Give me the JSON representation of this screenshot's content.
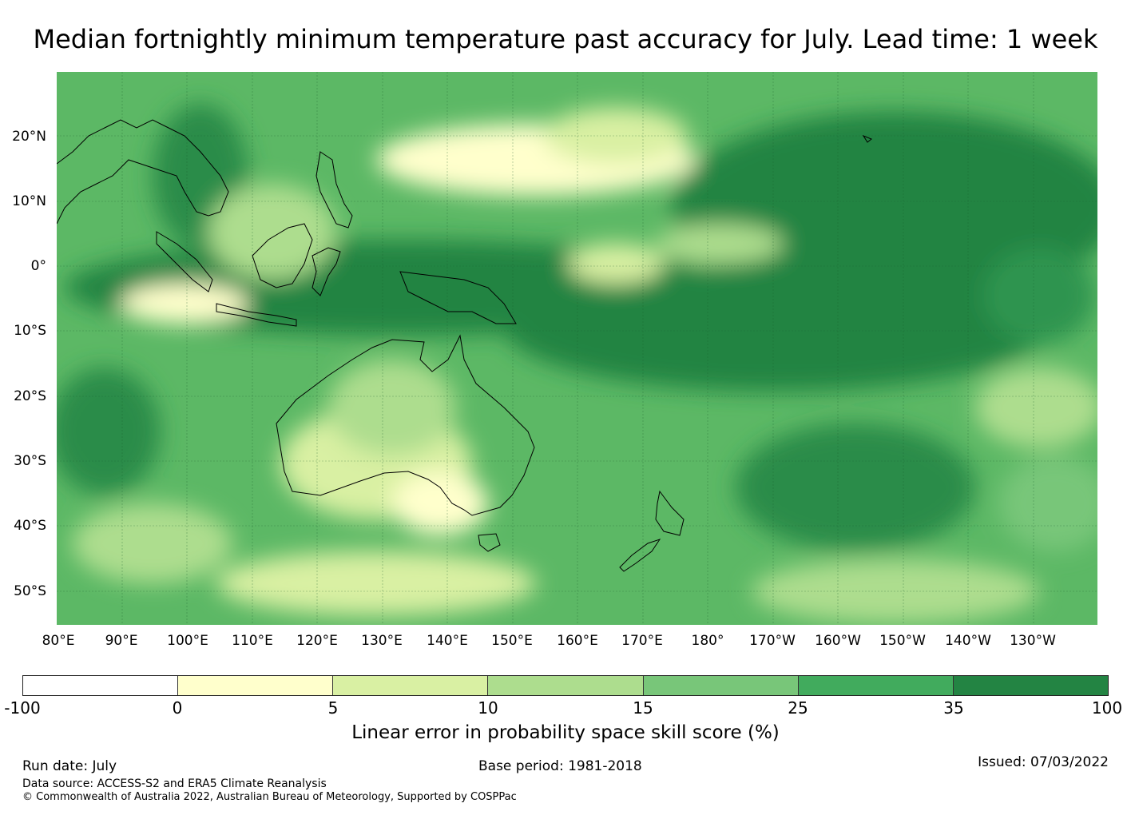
{
  "title": "Median fortnightly minimum temperature past accuracy for July. Lead time: 1 week",
  "map": {
    "lon_labels": [
      "80°E",
      "90°E",
      "100°E",
      "110°E",
      "120°E",
      "130°E",
      "140°E",
      "150°E",
      "160°E",
      "170°E",
      "180°",
      "170°W",
      "160°W",
      "150°W",
      "140°W",
      "130°W"
    ],
    "lat_labels": [
      "20°N",
      "10°N",
      "0°",
      "10°S",
      "20°S",
      "30°S",
      "40°S",
      "50°S"
    ],
    "regions": [
      "Maritime Continent",
      "Australia",
      "New Zealand",
      "Papua New Guinea",
      "Tropical Pacific"
    ]
  },
  "colorbar": {
    "ticks": [
      "-100",
      "0",
      "5",
      "10",
      "15",
      "25",
      "35",
      "100"
    ],
    "colors": [
      "#ffffff",
      "#ffffcc",
      "#d9f0a3",
      "#addd8e",
      "#78c679",
      "#41ab5d",
      "#238443"
    ],
    "label": "Linear error in probability space skill score (%)"
  },
  "footer": {
    "run_date": "Run date: July",
    "base_period": "Base period: 1981-2018",
    "issued": "Issued: 07/03/2022",
    "data_source": "Data source: ACCESS-S2 and ERA5 Climate Reanalysis",
    "copyright": "© Commonwealth of Australia 2022, Australian Bureau of Meteorology, Supported by COSPPac"
  }
}
